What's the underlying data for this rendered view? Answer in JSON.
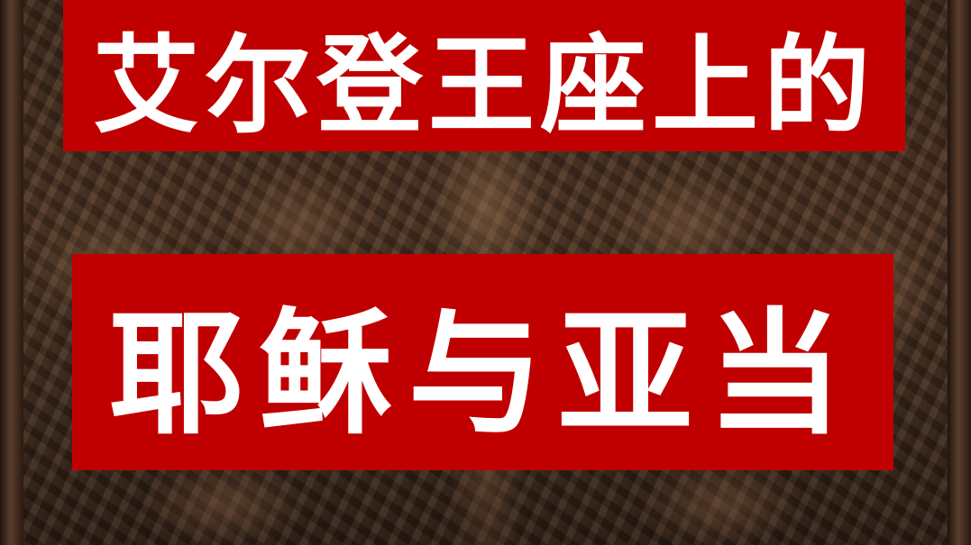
{
  "title_line1": "艾尔登王座上的",
  "title_line2": "耶稣与亚当",
  "colors": {
    "banner_red": "#c00000",
    "text": "#ffffff",
    "background_wood": "#3a271b"
  }
}
